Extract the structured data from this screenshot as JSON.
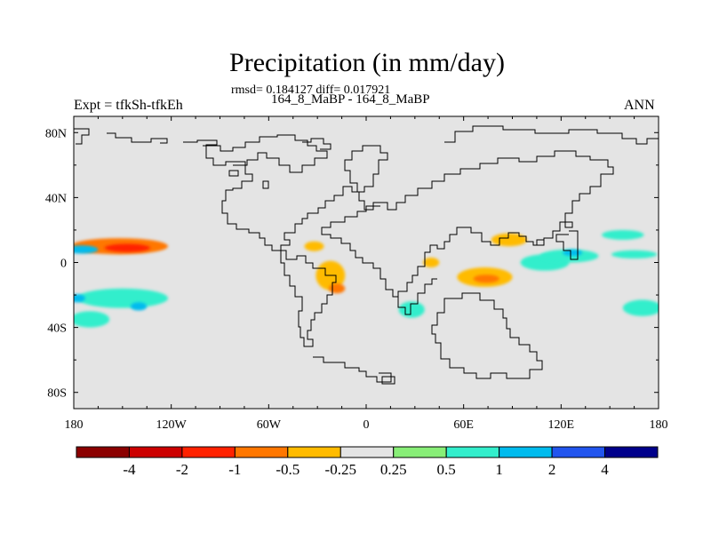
{
  "header": {
    "title": "Precipitation (in mm/day)",
    "stats": "rmsd= 0.184127 diff= 0.017921",
    "cases": "164_8_MaBP - 164_8_MaBP",
    "expt": "Expt = tfkSh-tfkEh",
    "season": "ANN"
  },
  "chart_data": {
    "type": "heatmap",
    "title": "Precipitation (in mm/day)",
    "subtitle": "rmsd= 0.184127 diff= 0.017921",
    "xlabel": "",
    "ylabel": "",
    "xlim": [
      -180,
      180
    ],
    "ylim": [
      -90,
      90
    ],
    "x_ticks": [
      {
        "value": -180,
        "label": "180"
      },
      {
        "value": -120,
        "label": "120W"
      },
      {
        "value": -60,
        "label": "60W"
      },
      {
        "value": 0,
        "label": "0"
      },
      {
        "value": 60,
        "label": "60E"
      },
      {
        "value": 120,
        "label": "120E"
      },
      {
        "value": 180,
        "label": "180"
      }
    ],
    "y_ticks": [
      {
        "value": 80,
        "label": "80N"
      },
      {
        "value": 40,
        "label": "40N"
      },
      {
        "value": 0,
        "label": "0"
      },
      {
        "value": -40,
        "label": "40S"
      },
      {
        "value": -80,
        "label": "80S"
      }
    ],
    "colorbar": {
      "colors": [
        "#8b0000",
        "#cc0000",
        "#ff2200",
        "#ff7700",
        "#ffbb00",
        "#e4e4e4",
        "#88ee77",
        "#33eecc",
        "#00bbee",
        "#2255ee",
        "#00008b"
      ],
      "labels": [
        "-4",
        "-2",
        "-1",
        "-0.5",
        "-0.25",
        "0.25",
        "0.5",
        "1",
        "2",
        "4"
      ]
    },
    "background_color": "#e4e4e4",
    "anomalies": [
      {
        "name": "central Pacific north",
        "lon": -152,
        "lat": 10,
        "rx": 30,
        "ry": 5,
        "level": -1
      },
      {
        "name": "central Pacific north core",
        "lon": -147,
        "lat": 9,
        "rx": 14,
        "ry": 2.5,
        "level": -2
      },
      {
        "name": "subtropical Pacific north",
        "lon": -175,
        "lat": 8,
        "rx": 10,
        "ry": 2.5,
        "level": 1
      },
      {
        "name": "south Pacific",
        "lon": -150,
        "lat": -22,
        "rx": 28,
        "ry": 6,
        "level": 0.5
      },
      {
        "name": "south Pacific band",
        "lon": -170,
        "lat": -35,
        "rx": 12,
        "ry": 5,
        "level": 0.5
      },
      {
        "name": "south Pacific cyan",
        "lon": -140,
        "lat": -27,
        "rx": 5,
        "ry": 2.5,
        "level": 1
      },
      {
        "name": "south Pacific west cyan",
        "lon": -178,
        "lat": -22,
        "rx": 5,
        "ry": 2.5,
        "level": 1
      },
      {
        "name": "Gulf of Guinea",
        "lon": -32,
        "lat": 10,
        "rx": 6,
        "ry": 3,
        "level": -0.5
      },
      {
        "name": "tropical South Atlantic",
        "lon": -22,
        "lat": -8,
        "rx": 9,
        "ry": 9,
        "level": -0.5
      },
      {
        "name": "tropical South Atlantic core",
        "lon": -18,
        "lat": -16,
        "rx": 5,
        "ry": 3,
        "level": -1
      },
      {
        "name": "Madagascar region",
        "lon": 28,
        "lat": -29,
        "rx": 8,
        "ry": 5,
        "level": 0.5
      },
      {
        "name": "west Indian Ocean",
        "lon": 40,
        "lat": 0,
        "rx": 5,
        "ry": 3,
        "level": -0.5
      },
      {
        "name": "central Indian Ocean",
        "lon": 73,
        "lat": -9,
        "rx": 17,
        "ry": 6,
        "level": -0.5
      },
      {
        "name": "central Indian Ocean core",
        "lon": 74,
        "lat": -10,
        "rx": 8,
        "ry": 2.5,
        "level": -1
      },
      {
        "name": "Bay of Bengal",
        "lon": 88,
        "lat": 14,
        "rx": 11,
        "ry": 4,
        "level": -0.5
      },
      {
        "name": "east Indian Ocean",
        "lon": 110,
        "lat": 0,
        "rx": 15,
        "ry": 5,
        "level": 0.5
      },
      {
        "name": "maritime continent",
        "lon": 125,
        "lat": 4,
        "rx": 18,
        "ry": 4,
        "level": 0.5
      },
      {
        "name": "maritime continent core",
        "lon": 127,
        "lat": 6,
        "rx": 6,
        "ry": 2,
        "level": 1
      },
      {
        "name": "west Pacific north",
        "lon": 158,
        "lat": 17,
        "rx": 13,
        "ry": 3,
        "level": 0.5
      },
      {
        "name": "west Pacific equator",
        "lon": 165,
        "lat": 5,
        "rx": 14,
        "ry": 2.5,
        "level": 0.5
      },
      {
        "name": "south Pacific east",
        "lon": 170,
        "lat": -28,
        "rx": 12,
        "ry": 5,
        "level": 0.5
      }
    ]
  }
}
